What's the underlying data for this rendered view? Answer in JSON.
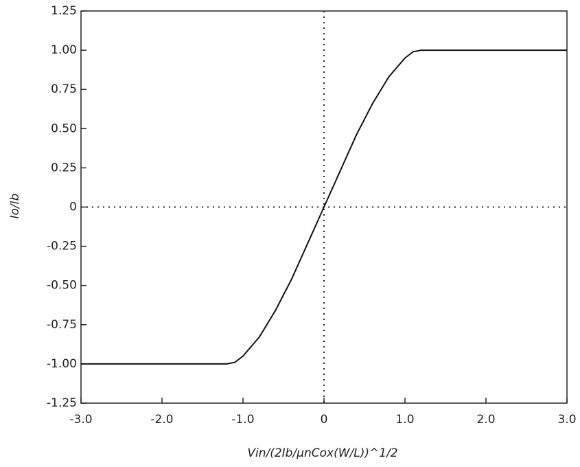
{
  "chart_data": {
    "type": "line",
    "x_label": "Vin/(2Ib/μnCox(W/L))^1/2",
    "y_label": "Io/Ib",
    "x": [
      -3.0,
      -1.2,
      -1.1,
      -1.0,
      -0.8,
      -0.6,
      -0.4,
      -0.2,
      0,
      0.2,
      0.4,
      0.6,
      0.8,
      1.0,
      1.1,
      1.2,
      3.0
    ],
    "series": [
      {
        "color": "#111111",
        "values": [
          -1.0,
          -1.0,
          -0.99,
          -0.95,
          -0.83,
          -0.66,
          -0.46,
          -0.23,
          0,
          0.23,
          0.46,
          0.66,
          0.83,
          0.95,
          0.99,
          1.0,
          1.0
        ]
      }
    ],
    "xlim": [
      -3.0,
      3.0
    ],
    "ylim": [
      -1.25,
      1.25
    ],
    "xticks": [
      {
        "value": -3,
        "label": "-3.0"
      },
      {
        "value": -2,
        "label": "-2.0"
      },
      {
        "value": -1,
        "label": "-1.0"
      },
      0,
      {
        "value": 1,
        "label": "1.0"
      },
      {
        "value": 2,
        "label": "2.0"
      },
      {
        "value": 3,
        "label": "3.0"
      }
    ],
    "yticks": [
      1.25,
      {
        "value": 1,
        "label": "1.00"
      },
      0.75,
      {
        "value": 0.5,
        "label": "0.50"
      },
      0.25,
      0,
      -0.25,
      {
        "value": -0.5,
        "label": "-0.50"
      },
      -0.75,
      {
        "value": -1,
        "label": "-1.00"
      },
      -1.25
    ],
    "grid": false
  }
}
